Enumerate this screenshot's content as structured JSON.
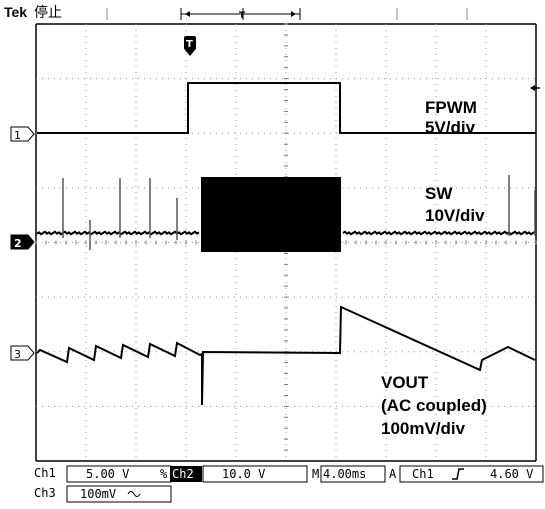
{
  "header": {
    "brand": "Tek",
    "run_state": "停止"
  },
  "waveforms": {
    "ch1": {
      "name": "FPWM",
      "scale": "5V/div"
    },
    "ch2": {
      "name": "SW",
      "scale": "10V/div"
    },
    "ch3": {
      "name": "VOUT",
      "coupling_note": "(AC coupled)",
      "scale": "100mV/div"
    }
  },
  "channel_markers": {
    "ch1": "1",
    "ch2": "2",
    "ch3": "3"
  },
  "trigger_marker": "T",
  "status_bar": {
    "ch1_label": "Ch1",
    "ch1_scale": "5.00 V",
    "ch2_label": "Ch2",
    "ch2_scale": "10.0 V",
    "timebase_prefix": "M",
    "timebase": "4.00ms",
    "trigger_prefix": "A",
    "trigger_source": "Ch1",
    "trigger_slope_icon": "rising-edge-icon",
    "trigger_level": "4.60 V",
    "ch3_label": "Ch3",
    "ch3_scale": "100mV"
  }
}
